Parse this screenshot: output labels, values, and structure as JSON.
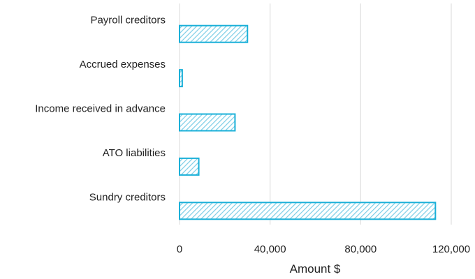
{
  "chart_data": {
    "type": "bar",
    "orientation": "horizontal",
    "categories": [
      "Payroll creditors",
      "Accrued expenses",
      "Income received in advance",
      "ATO liabilities",
      "Sundry creditors"
    ],
    "values": [
      30000,
      1200,
      24500,
      8500,
      113000
    ],
    "xlabel": "Amount $",
    "ylabel": "",
    "xlim": [
      0,
      120000
    ],
    "xticks": [
      0,
      40000,
      80000,
      120000
    ],
    "xtick_labels": [
      "0",
      "40,000",
      "80,000",
      "120,000"
    ],
    "grid": "vertical",
    "bar_style": "hatched",
    "colors": {
      "bar_stroke": "#1ab0d8",
      "bar_hatch": "#7ccde6",
      "grid": "#d9d9d9"
    }
  }
}
